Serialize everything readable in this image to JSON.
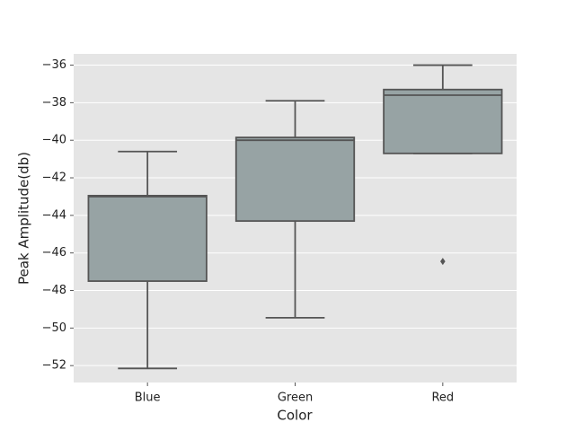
{
  "chart_data": {
    "type": "box",
    "xlabel": "Color",
    "ylabel": "Peak Amplitude(db)",
    "categories": [
      "Blue",
      "Green",
      "Red"
    ],
    "color": "#97a3a4",
    "boxes": [
      {
        "whislo": -52.15,
        "q1": -47.5,
        "med": -43.0,
        "q3": -42.95,
        "whishi": -40.6
      },
      {
        "whislo": -49.45,
        "q1": -44.3,
        "med": -40.0,
        "q3": -39.85,
        "whishi": -37.9
      },
      {
        "whislo": -40.7,
        "q1": -40.7,
        "med": -37.6,
        "q3": -37.3,
        "whishi": -36.0,
        "fliers": [
          -46.45
        ]
      }
    ],
    "ylim": [
      -52.9,
      -35.4
    ],
    "yticks": [
      {
        "value": -52,
        "label": "−52"
      },
      {
        "value": -50,
        "label": "−50"
      },
      {
        "value": -48,
        "label": "−48"
      },
      {
        "value": -46,
        "label": "−46"
      },
      {
        "value": -44,
        "label": "−44"
      },
      {
        "value": -42,
        "label": "−42"
      },
      {
        "value": -40,
        "label": "−40"
      },
      {
        "value": -38,
        "label": "−38"
      },
      {
        "value": -36,
        "label": "−36"
      }
    ],
    "grid": true
  }
}
